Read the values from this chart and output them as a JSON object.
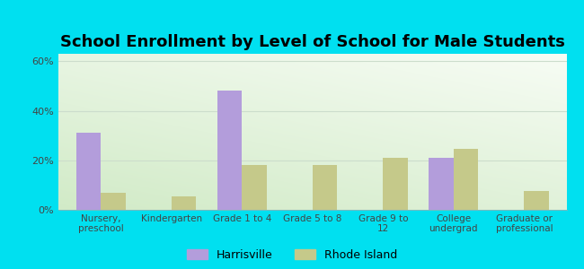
{
  "title": "School Enrollment by Level of School for Male Students",
  "categories": [
    "Nursery,\npreschool",
    "Kindergarten",
    "Grade 1 to 4",
    "Grade 5 to 8",
    "Grade 9 to\n12",
    "College\nundergrad",
    "Graduate or\nprofessional"
  ],
  "harrisville": [
    31,
    0,
    48,
    0,
    0,
    21,
    0
  ],
  "rhode_island": [
    7,
    5.5,
    18,
    18,
    21,
    24.5,
    7.5
  ],
  "harrisville_color": "#b39ddb",
  "rhode_island_color": "#c5c98a",
  "title_fontsize": 13,
  "ylabel_ticks": [
    "0%",
    "20%",
    "40%",
    "60%"
  ],
  "ylabel_values": [
    0,
    20,
    40,
    60
  ],
  "ylim": [
    0,
    63
  ],
  "legend_labels": [
    "Harrisville",
    "Rhode Island"
  ],
  "background_outer": "#00e0f0",
  "bar_width": 0.35,
  "grid_color": "#ccddcc",
  "tick_label_color": "#444444"
}
